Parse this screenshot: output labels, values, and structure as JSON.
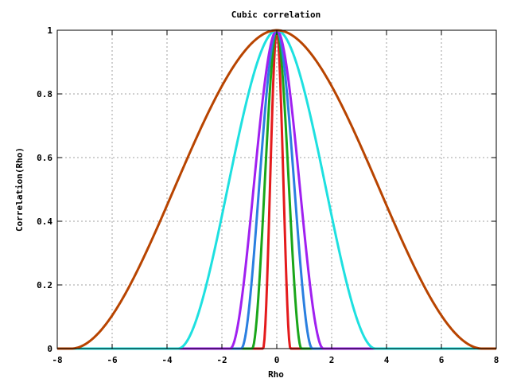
{
  "chart_data": {
    "type": "line",
    "title": "Cubic correlation",
    "xlabel": "Rho",
    "ylabel": "Correlation(Rho)",
    "xlim": [
      -8,
      8
    ],
    "ylim": [
      0,
      1
    ],
    "grid": true,
    "x_ticks": [
      -8,
      -6,
      -4,
      -2,
      0,
      2,
      4,
      6,
      8
    ],
    "x_tick_labels": [
      "-8",
      "-6",
      "-4",
      "-2",
      "0",
      "2",
      "4",
      "6",
      "8"
    ],
    "y_ticks": [
      0,
      0.2,
      0.4,
      0.6,
      0.8,
      1
    ],
    "y_tick_labels": [
      "0",
      "0.2",
      "0.4",
      "0.6",
      "0.8",
      "1"
    ],
    "series": [
      {
        "color": "#e41a1c",
        "support_half_width": 0.5
      },
      {
        "color": "#1aa61a",
        "support_half_width": 0.9
      },
      {
        "color": "#2a7fe0",
        "support_half_width": 1.3
      },
      {
        "color": "#a020f0",
        "support_half_width": 1.7
      },
      {
        "color": "#1ee0e0",
        "support_half_width": 3.6
      },
      {
        "color": "#b84400",
        "support_half_width": 7.5
      }
    ]
  }
}
